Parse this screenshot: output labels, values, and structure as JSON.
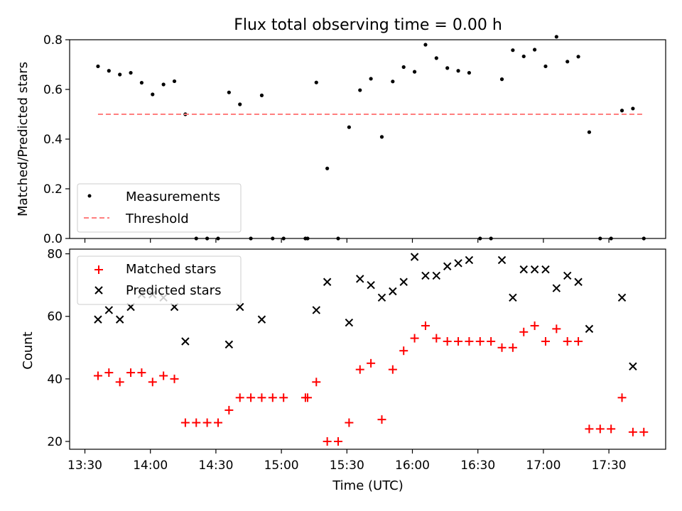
{
  "chart_data": [
    {
      "type": "scatter",
      "title": "Flux total observing time = 0.00 h",
      "xlabel": "",
      "ylabel": "Matched/Predicted stars",
      "xlim": [
        "13:23",
        "17:56"
      ],
      "ylim": [
        0,
        0.8
      ],
      "yticks": [
        "0.0",
        "0.2",
        "0.4",
        "0.6",
        "0.8"
      ],
      "xticks": [
        "13:30",
        "14:00",
        "14:30",
        "15:00",
        "15:30",
        "16:00",
        "16:30",
        "17:00",
        "17:30"
      ],
      "legend_position": "lower-left",
      "series": [
        {
          "name": "Measurements",
          "marker": "dot",
          "color": "#000000",
          "x": [
            "13:36",
            "13:41",
            "13:46",
            "13:51",
            "13:56",
            "14:01",
            "14:06",
            "14:11",
            "14:16",
            "14:21",
            "14:26",
            "14:31",
            "14:36",
            "14:41",
            "14:46",
            "14:51",
            "14:56",
            "15:01",
            "15:11",
            "15:12",
            "15:16",
            "15:21",
            "15:26",
            "15:31",
            "15:36",
            "15:41",
            "15:46",
            "15:51",
            "15:56",
            "16:01",
            "16:06",
            "16:11",
            "16:16",
            "16:21",
            "16:26",
            "16:31",
            "16:36",
            "16:41",
            "16:46",
            "16:51",
            "16:56",
            "17:01",
            "17:06",
            "17:11",
            "17:16",
            "17:21",
            "17:26",
            "17:31",
            "17:36",
            "17:41",
            "17:46"
          ],
          "y": [
            0.693,
            0.675,
            0.66,
            0.667,
            0.627,
            0.58,
            0.62,
            0.633,
            0.5,
            0,
            0,
            0,
            0.588,
            0.54,
            0,
            0.576,
            0,
            0,
            0,
            0,
            0.628,
            0.282,
            0,
            0.448,
            0.597,
            0.643,
            0.409,
            0.632,
            0.69,
            0.671,
            0.78,
            0.726,
            0.686,
            0.675,
            0.667,
            0,
            0,
            0.641,
            0.758,
            0.733,
            0.76,
            0.693,
            0.812,
            0.712,
            0.732,
            0.428,
            0,
            0,
            0.515,
            0.523,
            0
          ]
        },
        {
          "name": "Threshold",
          "style": "dashed",
          "color": "#ff7f7f",
          "x": [
            "13:36",
            "17:46"
          ],
          "y": [
            0.5,
            0.5
          ]
        }
      ]
    },
    {
      "type": "scatter",
      "title": "",
      "xlabel": "Time (UTC)",
      "ylabel": "Count",
      "xlim": [
        "13:23",
        "17:56"
      ],
      "ylim": [
        17.5,
        81.5
      ],
      "yticks": [
        "20",
        "40",
        "60",
        "80"
      ],
      "xticks": [
        "13:30",
        "14:00",
        "14:30",
        "15:00",
        "15:30",
        "16:00",
        "16:30",
        "17:00",
        "17:30"
      ],
      "legend_position": "upper-left",
      "series": [
        {
          "name": "Matched stars",
          "marker": "plus",
          "color": "#ff0000",
          "x": [
            "13:36",
            "13:41",
            "13:46",
            "13:51",
            "13:56",
            "14:01",
            "14:06",
            "14:11",
            "14:16",
            "14:21",
            "14:26",
            "14:31",
            "14:36",
            "14:41",
            "14:46",
            "14:51",
            "14:56",
            "15:01",
            "15:11",
            "15:12",
            "15:16",
            "15:21",
            "15:26",
            "15:31",
            "15:36",
            "15:41",
            "15:46",
            "15:51",
            "15:56",
            "16:01",
            "16:06",
            "16:11",
            "16:16",
            "16:21",
            "16:26",
            "16:31",
            "16:36",
            "16:41",
            "16:46",
            "16:51",
            "16:56",
            "17:01",
            "17:06",
            "17:11",
            "17:16",
            "17:21",
            "17:26",
            "17:31",
            "17:36",
            "17:41",
            "17:46"
          ],
          "y": [
            41,
            42,
            39,
            42,
            42,
            39,
            41,
            40,
            26,
            26,
            26,
            26,
            30,
            34,
            34,
            34,
            34,
            34,
            34,
            34,
            39,
            20,
            20,
            26,
            43,
            45,
            27,
            43,
            49,
            53,
            57,
            53,
            52,
            52,
            52,
            52,
            52,
            50,
            50,
            55,
            57,
            52,
            56,
            52,
            52,
            24,
            24,
            24,
            34,
            23,
            23
          ]
        },
        {
          "name": "Predicted stars",
          "marker": "x",
          "color": "#000000",
          "x": [
            "13:36",
            "13:41",
            "13:46",
            "13:51",
            "13:56",
            "14:01",
            "14:06",
            "14:11",
            "14:16",
            "14:36",
            "14:41",
            "14:51",
            "15:16",
            "15:21",
            "15:31",
            "15:36",
            "15:41",
            "15:46",
            "15:51",
            "15:56",
            "16:01",
            "16:06",
            "16:11",
            "16:16",
            "16:21",
            "16:26",
            "16:41",
            "16:46",
            "16:51",
            "16:56",
            "17:01",
            "17:06",
            "17:11",
            "17:16",
            "17:21",
            "17:36",
            "17:41"
          ],
          "y": [
            59,
            62,
            59,
            63,
            67,
            67,
            66,
            63,
            52,
            51,
            63,
            59,
            62,
            71,
            58,
            72,
            70,
            66,
            68,
            71,
            79,
            73,
            73,
            76,
            77,
            78,
            78,
            66,
            75,
            75,
            75,
            69,
            73,
            71,
            56,
            66,
            44
          ]
        }
      ]
    }
  ]
}
